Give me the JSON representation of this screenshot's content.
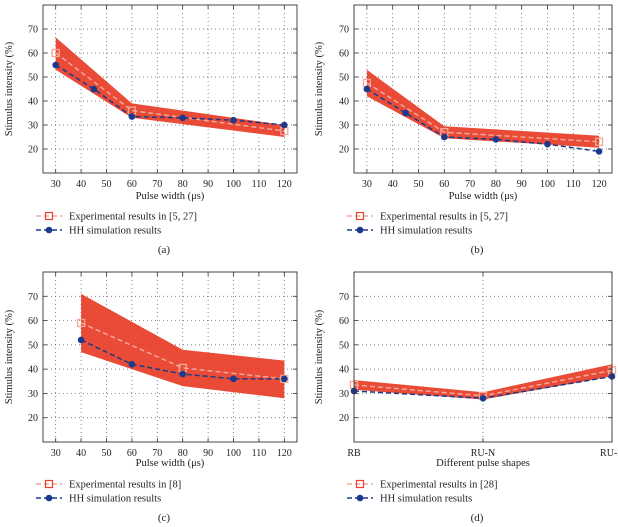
{
  "chart_data": [
    {
      "type": "line",
      "subplot_label": "(a)",
      "xlabel": "Pulse width (μs)",
      "ylabel": "Stimulus intensity (%)",
      "xlim": [
        25,
        125
      ],
      "ylim": [
        10,
        80
      ],
      "xticks": [
        "30",
        "40",
        "50",
        "60",
        "70",
        "80",
        "90",
        "100",
        "110",
        "120"
      ],
      "xtick_values": [
        30,
        40,
        50,
        60,
        70,
        80,
        90,
        100,
        110,
        120
      ],
      "yticks": [
        "20",
        "30",
        "40",
        "50",
        "60",
        "70"
      ],
      "ytick_values": [
        20,
        30,
        40,
        50,
        60,
        70
      ],
      "grid": true,
      "series": [
        {
          "name": "Experimental results in [5, 27]",
          "x": [
            30,
            60,
            120
          ],
          "values": [
            60,
            36,
            27.5
          ],
          "color": "#e8412c",
          "marker": "square",
          "band_upper": [
            66.5,
            39,
            30
          ],
          "band_lower": [
            53,
            33,
            25
          ]
        },
        {
          "name": "HH simulation results",
          "x": [
            30,
            45,
            60,
            80,
            100,
            120
          ],
          "values": [
            55,
            45,
            33.5,
            33,
            32,
            30
          ],
          "color": "#1a3a8c",
          "marker": "circle"
        }
      ]
    },
    {
      "type": "line",
      "subplot_label": "(b)",
      "xlabel": "Pulse width (μs)",
      "ylabel": "Stimulus intensity (%)",
      "xlim": [
        25,
        125
      ],
      "ylim": [
        10,
        80
      ],
      "xticks": [
        "30",
        "40",
        "50",
        "60",
        "70",
        "80",
        "90",
        "100",
        "110",
        "120"
      ],
      "xtick_values": [
        30,
        40,
        50,
        60,
        70,
        80,
        90,
        100,
        110,
        120
      ],
      "yticks": [
        "20",
        "30",
        "40",
        "50",
        "60",
        "70"
      ],
      "ytick_values": [
        20,
        30,
        40,
        50,
        60,
        70
      ],
      "grid": true,
      "series": [
        {
          "name": "Experimental results in [5, 27]",
          "x": [
            30,
            60,
            120
          ],
          "values": [
            47.5,
            27,
            23
          ],
          "color": "#e8412c",
          "marker": "square",
          "band_upper": [
            53,
            29.5,
            25.5
          ],
          "band_lower": [
            42,
            24.5,
            20.5
          ]
        },
        {
          "name": "HH simulation results",
          "x": [
            30,
            45,
            60,
            80,
            100,
            120
          ],
          "values": [
            45,
            35,
            25,
            24,
            22,
            19
          ],
          "color": "#1a3a8c",
          "marker": "circle"
        }
      ]
    },
    {
      "type": "line",
      "subplot_label": "(c)",
      "xlabel": "Pulse width (μs)",
      "ylabel": "Stimulus intensity (%)",
      "xlim": [
        25,
        125
      ],
      "ylim": [
        10,
        80
      ],
      "xticks": [
        "30",
        "40",
        "50",
        "60",
        "70",
        "80",
        "90",
        "100",
        "110",
        "120"
      ],
      "xtick_values": [
        30,
        40,
        50,
        60,
        70,
        80,
        90,
        100,
        110,
        120
      ],
      "yticks": [
        "20",
        "30",
        "40",
        "50",
        "60",
        "70"
      ],
      "ytick_values": [
        20,
        30,
        40,
        50,
        60,
        70
      ],
      "grid": true,
      "series": [
        {
          "name": "Experimental results in [8]",
          "x": [
            40,
            80,
            120
          ],
          "values": [
            59,
            40.5,
            36
          ],
          "color": "#e8412c",
          "marker": "square",
          "band_upper": [
            71,
            48,
            43.5
          ],
          "band_lower": [
            47,
            33,
            28
          ]
        },
        {
          "name": "HH simulation results",
          "x": [
            40,
            60,
            80,
            100,
            120
          ],
          "values": [
            52,
            42,
            38,
            36,
            36
          ],
          "color": "#1a3a8c",
          "marker": "circle"
        }
      ]
    },
    {
      "type": "line",
      "subplot_label": "(d)",
      "xlabel": "Different pulse shapes",
      "ylabel": "Stimulus intensity (%)",
      "xlim": [
        0,
        2
      ],
      "ylim": [
        10,
        80
      ],
      "xticks": [
        "RB",
        "RU-N",
        "RU-R"
      ],
      "xtick_values": [
        0,
        1,
        2
      ],
      "yticks": [
        "20",
        "30",
        "40",
        "50",
        "60",
        "70"
      ],
      "ytick_values": [
        20,
        30,
        40,
        50,
        60,
        70
      ],
      "grid": true,
      "series": [
        {
          "name": "Experimental results in [28]",
          "x": [
            0,
            1,
            2
          ],
          "values": [
            33.5,
            29,
            39.5
          ],
          "color": "#e8412c",
          "marker": "square",
          "band_upper": [
            35.5,
            30.5,
            42
          ],
          "band_lower": [
            31.5,
            27.5,
            37
          ]
        },
        {
          "name": "HH simulation results",
          "x": [
            0,
            1,
            2
          ],
          "values": [
            31,
            28,
            37
          ],
          "color": "#1a3a8c",
          "marker": "circle"
        }
      ]
    }
  ]
}
